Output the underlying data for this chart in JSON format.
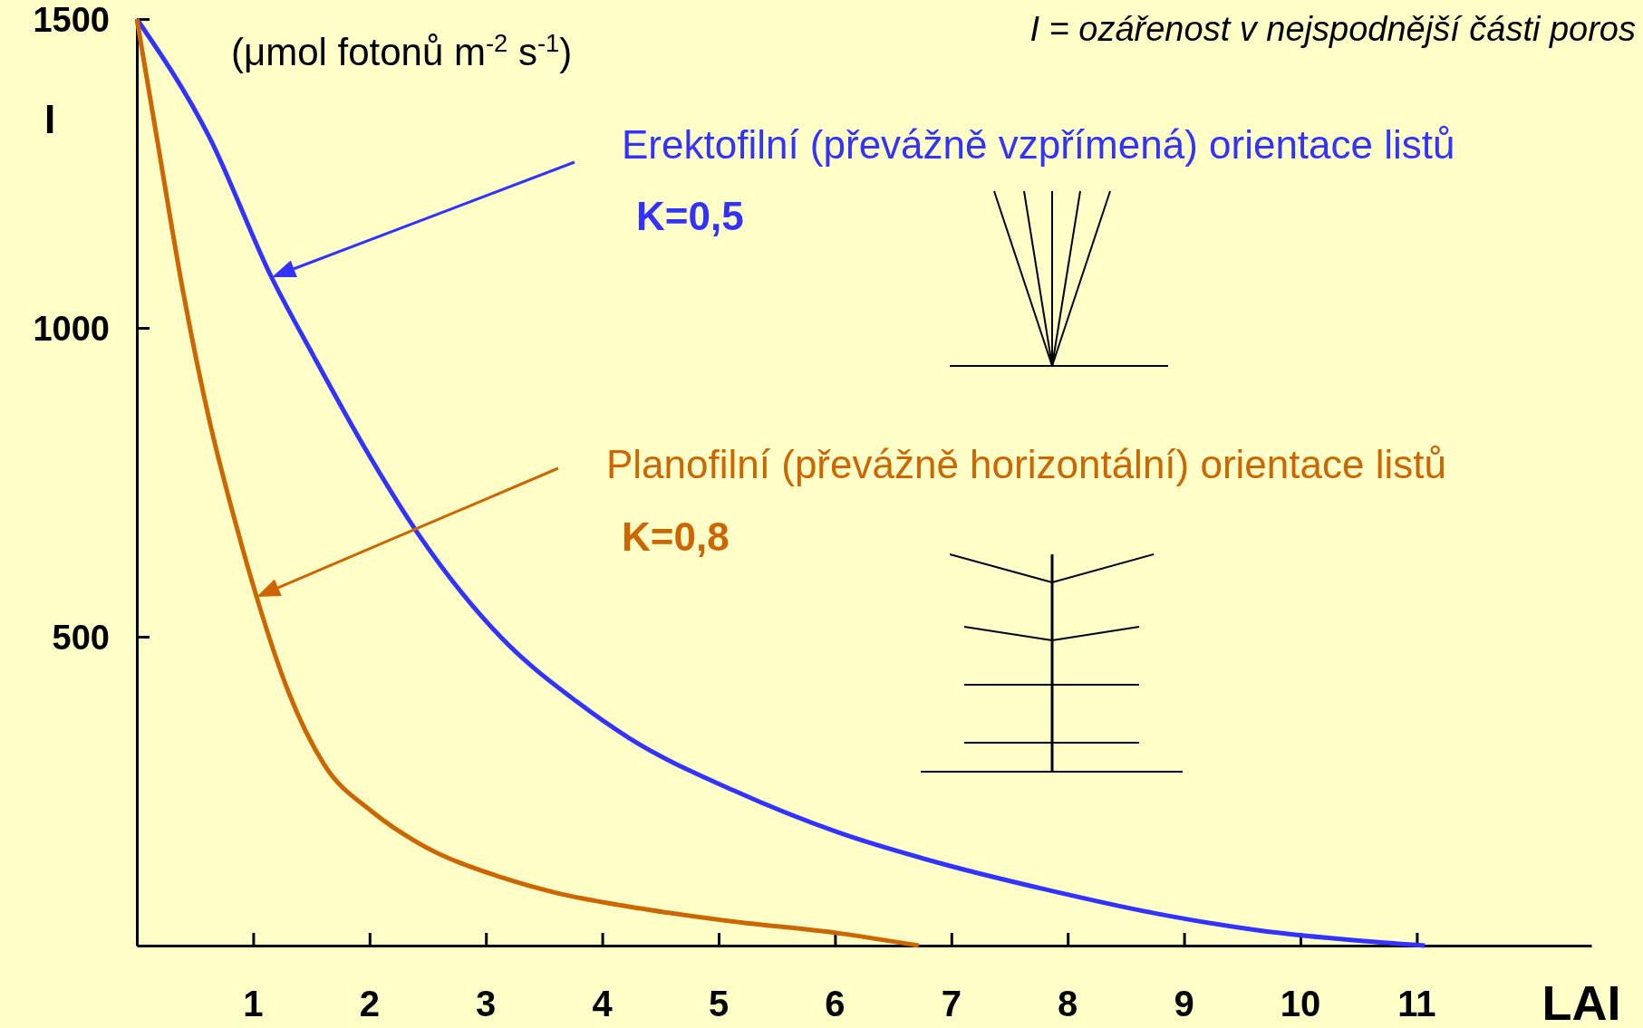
{
  "chart_data": {
    "type": "line",
    "ylabel": "I",
    "xlabel": "LAI",
    "subtitle": "(μmol fotonů m$^{-2}$ s$^{-1}$)",
    "title": "I = ozářenost v nejspodnější části poros",
    "xlim": [
      0,
      12.5
    ],
    "xticks": [
      1,
      2,
      3,
      4,
      5,
      6,
      7,
      8,
      9,
      10,
      11
    ],
    "ylim": [
      0,
      1500
    ],
    "yticks": [
      500,
      1000,
      1500
    ],
    "grid": false,
    "marker": "none",
    "line_style": "solid",
    "series": [
      {
        "name": "Erektofilní (převážně vzpřímená) orientace listů",
        "color": "#3333ff",
        "x": [
          0,
          0.62,
          1.16,
          1.52,
          1.97,
          2.42,
          3.14,
          3.78,
          4.23,
          5.13,
          6.03,
          6.93,
          7.83,
          8.73,
          9.63,
          10.5,
          11.07
        ],
        "values": [
          1500,
          1310,
          1081,
          954,
          802,
          666,
          497,
          395,
          336,
          251,
          183,
          132,
          90,
          53,
          25,
          8,
          0
        ]
      },
      {
        "name": "Planofilní (převážně horizontální) orientace listů",
        "color": "#cc6600",
        "x": [
          0,
          0.17,
          0.4,
          0.62,
          0.85,
          1.03,
          1.3,
          1.61,
          2.02,
          2.42,
          3.14,
          3.59,
          4.23,
          5.13,
          6.03,
          6.72
        ],
        "values": [
          1500,
          1310,
          1056,
          853,
          683,
          564,
          412,
          293,
          217,
          166,
          110,
          86,
          63,
          39,
          20,
          0
        ]
      }
    ],
    "annotations": [
      "K=0,5",
      "K=0,8"
    ]
  }
}
